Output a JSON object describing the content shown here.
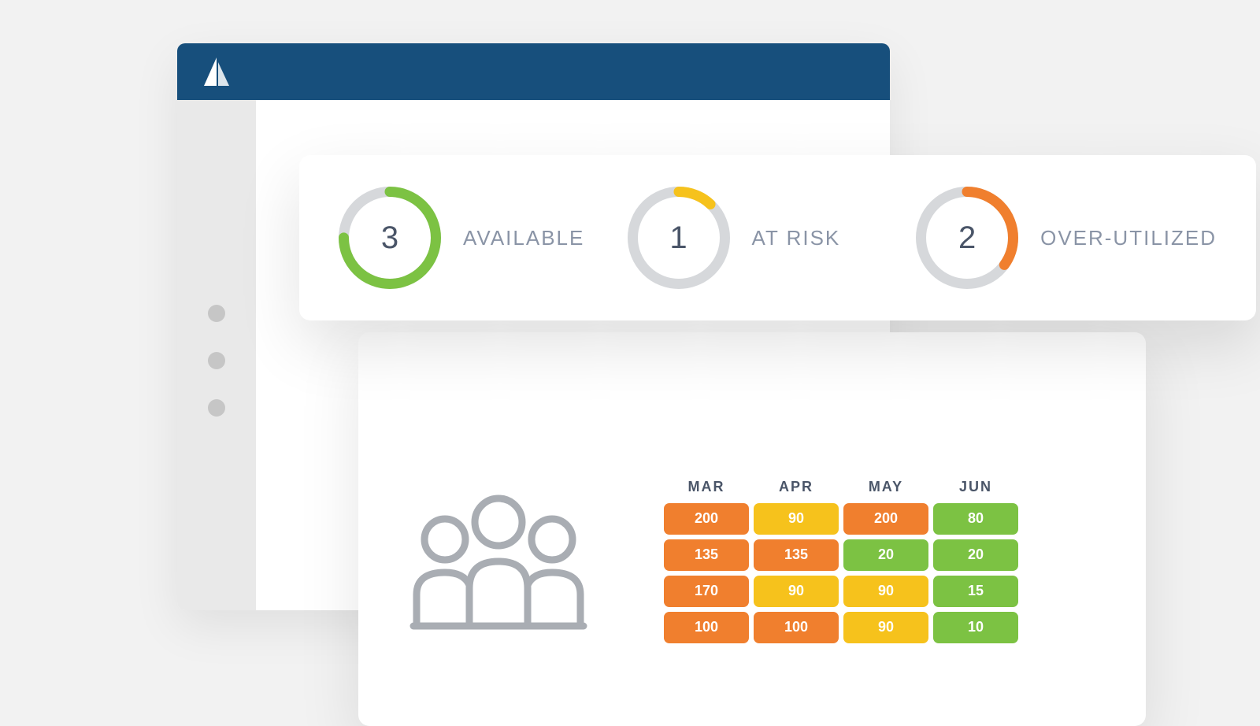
{
  "colors": {
    "page_bg": "#f2f2f2",
    "title_bar": "#174f7c",
    "sidebar_bg": "#e9e9e9",
    "sidebar_dot": "#c6c6c6",
    "card_bg": "#ffffff",
    "text_muted": "#8a94a6",
    "text_value": "#4a5568",
    "gauge_track": "#d6d8db",
    "people_stroke": "#a9adb3",
    "status": {
      "green": "#7cc243",
      "yellow": "#f6c21c",
      "orange": "#f07f2e"
    }
  },
  "metrics": [
    {
      "value": "3",
      "label": "AVAILABLE",
      "percent": 75,
      "color": "#7cc243"
    },
    {
      "value": "1",
      "label": "AT RISK",
      "percent": 12,
      "color": "#f6c21c"
    },
    {
      "value": "2",
      "label": "OVER-UTILIZED",
      "percent": 35,
      "color": "#f07f2e"
    }
  ],
  "gauge": {
    "size": 130,
    "stroke_width": 13,
    "track_color": "#d6d8db"
  },
  "heat_table": {
    "columns": [
      "MAR",
      "APR",
      "MAY",
      "JUN"
    ],
    "rows": [
      [
        {
          "v": "200",
          "c": "#f07f2e"
        },
        {
          "v": "90",
          "c": "#f6c21c"
        },
        {
          "v": "200",
          "c": "#f07f2e"
        },
        {
          "v": "80",
          "c": "#7cc243"
        }
      ],
      [
        {
          "v": "135",
          "c": "#f07f2e"
        },
        {
          "v": "135",
          "c": "#f07f2e"
        },
        {
          "v": "20",
          "c": "#7cc243"
        },
        {
          "v": "20",
          "c": "#7cc243"
        }
      ],
      [
        {
          "v": "170",
          "c": "#f07f2e"
        },
        {
          "v": "90",
          "c": "#f6c21c"
        },
        {
          "v": "90",
          "c": "#f6c21c"
        },
        {
          "v": "15",
          "c": "#7cc243"
        }
      ],
      [
        {
          "v": "100",
          "c": "#f07f2e"
        },
        {
          "v": "100",
          "c": "#f07f2e"
        },
        {
          "v": "90",
          "c": "#f6c21c"
        },
        {
          "v": "10",
          "c": "#7cc243"
        }
      ]
    ],
    "cell": {
      "width": 108,
      "height": 40,
      "gap": 6,
      "radius": 7,
      "fontsize": 18
    },
    "header_fontsize": 18
  },
  "sidebar": {
    "dot_count": 3
  }
}
